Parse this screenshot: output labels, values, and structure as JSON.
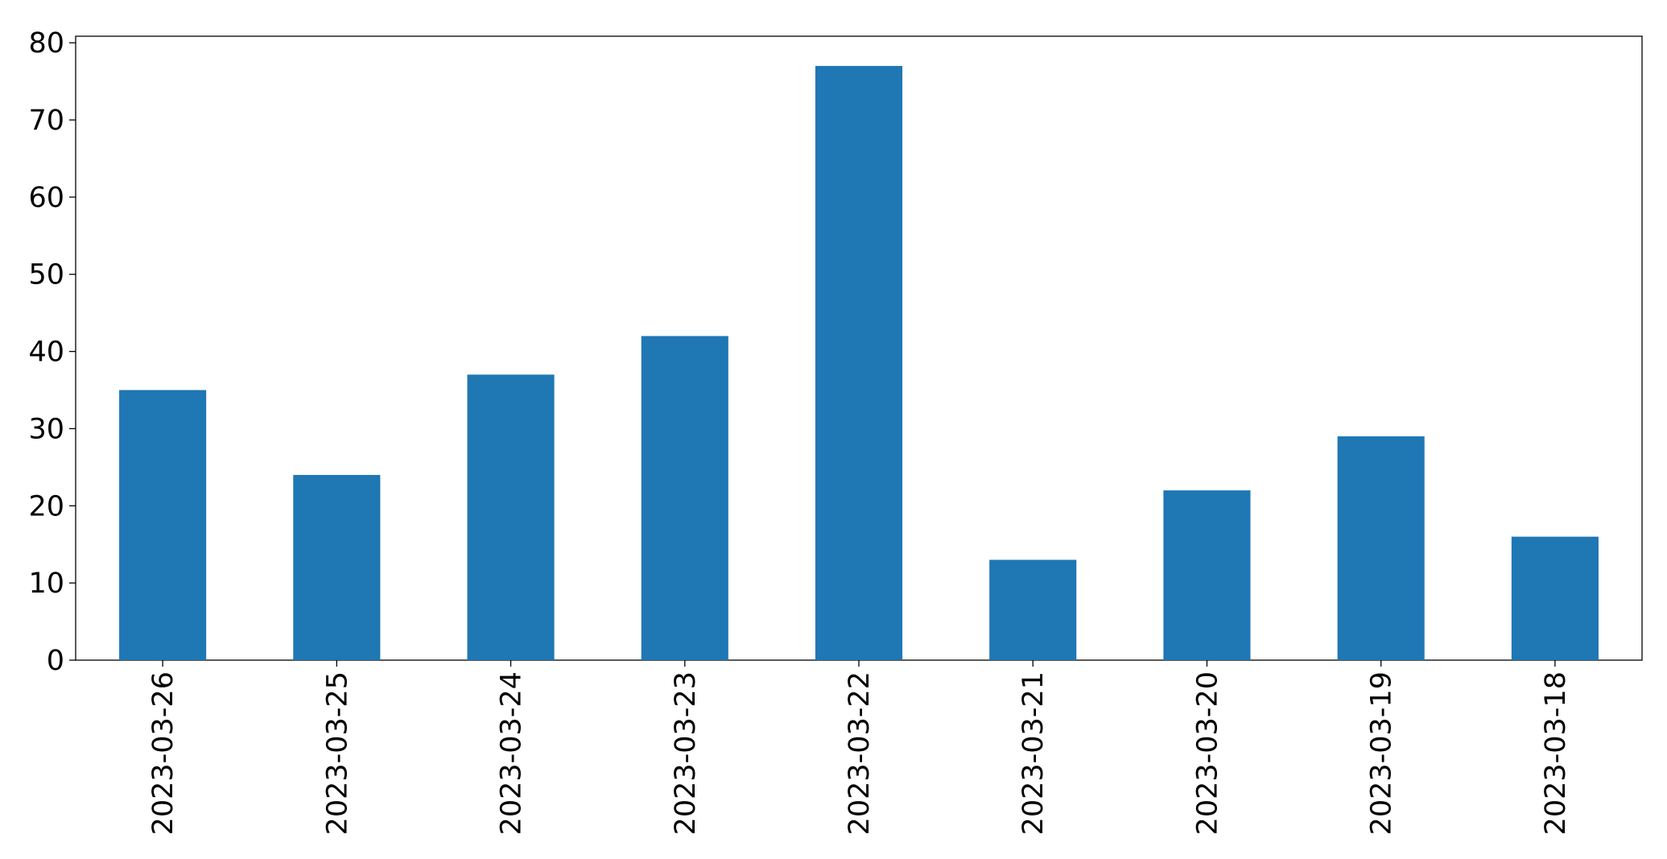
{
  "chart_data": {
    "type": "bar",
    "categories": [
      "2023-03-26",
      "2023-03-25",
      "2023-03-24",
      "2023-03-23",
      "2023-03-22",
      "2023-03-21",
      "2023-03-20",
      "2023-03-19",
      "2023-03-18"
    ],
    "values": [
      35,
      24,
      37,
      42,
      77,
      13,
      22,
      29,
      16
    ],
    "color": "#1f77b4",
    "ylim": [
      0,
      80.85
    ],
    "yticks": [
      0,
      10,
      20,
      30,
      40,
      50,
      60,
      70,
      80
    ],
    "grid": false
  }
}
